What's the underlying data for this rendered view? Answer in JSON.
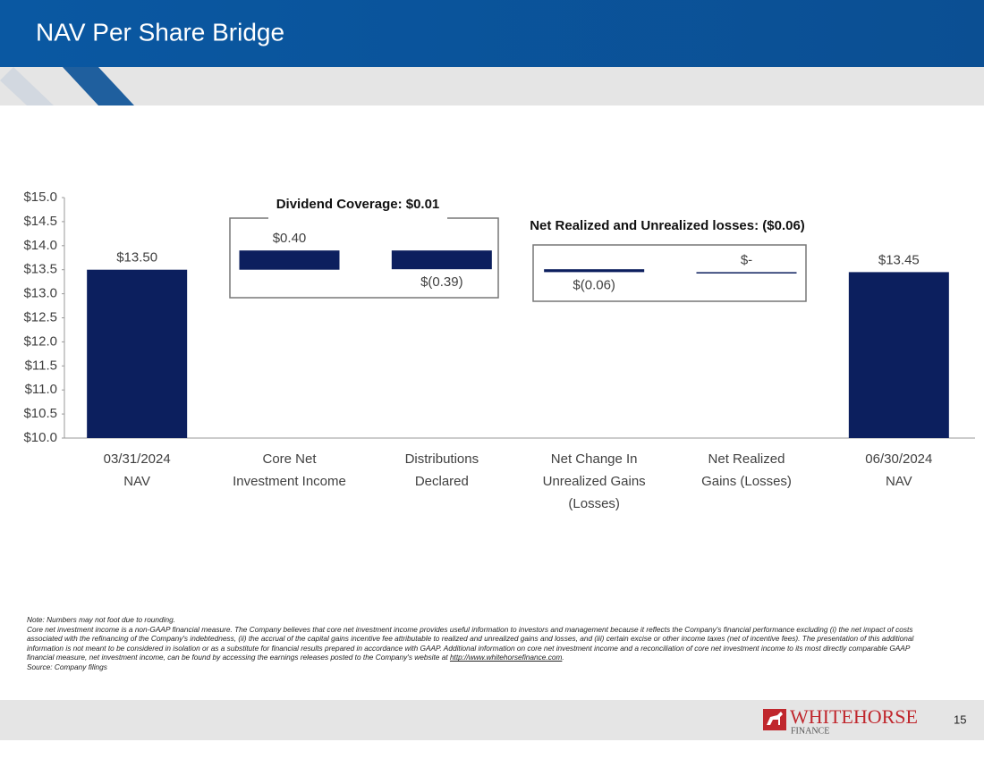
{
  "header": {
    "title": "NAV Per Share Bridge"
  },
  "chart_data": {
    "type": "waterfall",
    "categories": [
      [
        "03/31/2024",
        "NAV"
      ],
      [
        "Core Net",
        "Investment Income"
      ],
      [
        "Distributions",
        "Declared"
      ],
      [
        "Net Change In",
        "Unrealized Gains",
        "(Losses)"
      ],
      [
        "Net Realized",
        "Gains (Losses)"
      ],
      [
        "06/30/2024",
        "NAV"
      ]
    ],
    "measure": [
      "absolute",
      "relative",
      "relative",
      "relative",
      "relative",
      "absolute"
    ],
    "values": [
      13.5,
      0.4,
      -0.39,
      -0.06,
      0,
      13.45
    ],
    "value_labels": [
      "$13.50",
      "$0.40",
      "$(0.39)",
      "$(0.06)",
      "$-",
      "$13.45"
    ],
    "color": "#0c1f5e",
    "ylim": [
      10,
      15
    ],
    "yticks": [
      {
        "value": 10,
        "label": "$10.0"
      },
      {
        "value": 10.5,
        "label": "$10.5"
      },
      {
        "value": 11,
        "label": "$11.0"
      },
      {
        "value": 11.5,
        "label": "$11.5"
      },
      {
        "value": 12,
        "label": "$12.0"
      },
      {
        "value": 12.5,
        "label": "$12.5"
      },
      {
        "value": 13,
        "label": "$13.0"
      },
      {
        "value": 13.5,
        "label": "$13.5"
      },
      {
        "value": 14,
        "label": "$14.0"
      },
      {
        "value": 14.5,
        "label": "$14.5"
      },
      {
        "value": 15,
        "label": "$15.0"
      }
    ],
    "grid": false,
    "annotations": [
      "Dividend Coverage: $0.01",
      "Net Realized and Unrealized losses: ($0.06)"
    ]
  },
  "footnotes": {
    "note": "Note: Numbers may not foot due to rounding.",
    "body": "Core net investment income is a non-GAAP financial measure. The Company believes that core net investment income provides useful information to investors and management because it reflects the Company's financial performance excluding (i) the net impact of costs associated with the refinancing of the Company's indebtedness, (ii) the accrual of the capital gains incentive fee attributable to realized and unrealized gains and losses, and (iii) certain excise or other income taxes (net of incentive fees). The presentation of this additional information is not meant to be considered in isolation or as a substitute for financial results prepared in accordance with GAAP. Additional information on core net investment income and a reconciliation of core net investment income to its most directly comparable GAAP financial measure, net investment income, can be found by accessing the earnings releases posted to the Company's website at ",
    "link": "http://www.whitehorsefinance.com",
    "tail": ".",
    "source": "Source: Company filings"
  },
  "footer": {
    "logo_name": "WHITEHORSE",
    "logo_sub": "FINANCE",
    "page": "15"
  }
}
